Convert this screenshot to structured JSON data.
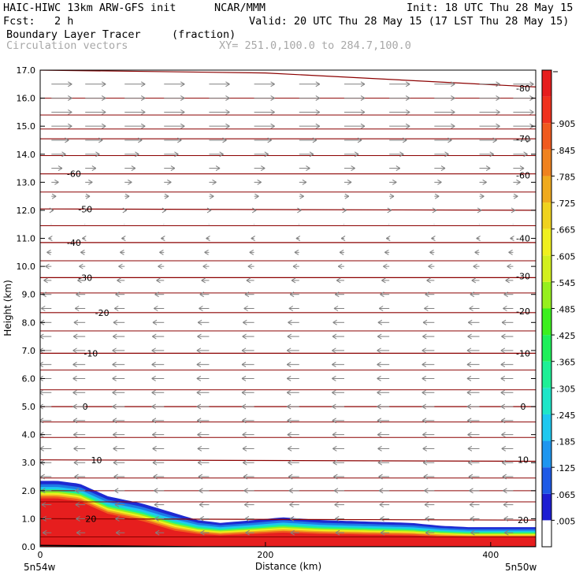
{
  "header": {
    "line1_left": "HAIC-HIWC 13km ARW-GFS init",
    "line1_mid": "NCAR/MMM",
    "line1_right": "Init: 18 UTC Thu 28 May 15",
    "fcst": "Fcst:   2 h",
    "valid": "Valid: 20 UTC Thu 28 May 15 (17 LST Thu 28 May 15)",
    "field": "Boundary Layer Tracer",
    "units": "(fraction)",
    "vectors": "Circulation vectors",
    "xy": "XY= 251.0,100.0 to 284.7,100.0"
  },
  "chart_data": {
    "type": "heatmap",
    "title": "Boundary Layer Tracer",
    "units": "(fraction)",
    "xlabel": "Distance (km)",
    "ylabel": "Height (km)",
    "xlim": [
      0,
      440
    ],
    "ylim": [
      0,
      17
    ],
    "x_ticks": [
      "0",
      "200",
      "400"
    ],
    "x_tick_values": [
      0,
      200,
      400
    ],
    "x_end_labels": {
      "left": "5n54w",
      "right": "5n50w"
    },
    "y_ticks": [
      "0.0",
      "1.0",
      "2.0",
      "3.0",
      "4.0",
      "5.0",
      "6.0",
      "7.0",
      "8.0",
      "9.0",
      "10.0",
      "11.0",
      "12.0",
      "13.0",
      "14.0",
      "15.0",
      "16.0",
      "17.0"
    ],
    "colorbar": {
      "labels": [
        ".005",
        ".065",
        ".125",
        ".185",
        ".245",
        ".305",
        ".365",
        ".425",
        ".485",
        ".545",
        ".605",
        ".665",
        ".725",
        ".785",
        ".845",
        ".905"
      ],
      "colors": [
        "#ffffff",
        "#1e1ed2",
        "#1e5ae6",
        "#1e96f0",
        "#1ec8f0",
        "#1ee6c8",
        "#1ef096",
        "#1ef05a",
        "#3cf01e",
        "#96f01e",
        "#d2f01e",
        "#f0f01e",
        "#f0d21e",
        "#f0aa1e",
        "#f0821e",
        "#f05a1e",
        "#f0321e",
        "#e61e1e"
      ]
    },
    "tracer_top_km": [
      [
        0,
        2.35
      ],
      [
        15,
        2.35
      ],
      [
        35,
        2.25
      ],
      [
        60,
        1.8
      ],
      [
        90,
        1.55
      ],
      [
        115,
        1.25
      ],
      [
        140,
        0.95
      ],
      [
        160,
        0.85
      ],
      [
        190,
        0.95
      ],
      [
        215,
        1.05
      ],
      [
        250,
        0.95
      ],
      [
        290,
        0.9
      ],
      [
        330,
        0.85
      ],
      [
        355,
        0.75
      ],
      [
        380,
        0.7
      ],
      [
        410,
        0.7
      ],
      [
        440,
        0.7
      ]
    ],
    "terrain_km": [
      [
        0,
        0.05
      ],
      [
        80,
        0.02
      ],
      [
        140,
        0.0
      ],
      [
        440,
        0.0
      ]
    ],
    "temperature_contours": [
      {
        "value": -80,
        "label": "-80",
        "points": [
          [
            0,
            17.0
          ],
          [
            200,
            16.9
          ],
          [
            440,
            16.4
          ]
        ]
      },
      {
        "value": -70,
        "label": "-70",
        "points": [
          [
            0,
            14.55
          ],
          [
            440,
            14.55
          ]
        ]
      },
      {
        "value": -60,
        "label": "-60",
        "points": [
          [
            0,
            13.3
          ],
          [
            440,
            13.3
          ]
        ]
      },
      {
        "value": -50,
        "label": "-50",
        "points": [
          [
            0,
            12.05
          ],
          [
            440,
            12.0
          ]
        ]
      },
      {
        "value": -40,
        "label": "-40",
        "points": [
          [
            0,
            10.85
          ],
          [
            440,
            10.85
          ]
        ]
      },
      {
        "value": -30,
        "label": "-30",
        "points": [
          [
            0,
            9.6
          ],
          [
            440,
            9.6
          ]
        ]
      },
      {
        "value": -20,
        "label": "-20",
        "points": [
          [
            0,
            8.35
          ],
          [
            440,
            8.35
          ]
        ]
      },
      {
        "value": -10,
        "label": "-10",
        "points": [
          [
            0,
            6.9
          ],
          [
            440,
            6.9
          ]
        ]
      },
      {
        "value": 0,
        "label": "0",
        "points": [
          [
            0,
            5.0
          ],
          [
            440,
            5.0
          ]
        ]
      },
      {
        "value": 10,
        "label": "10",
        "points": [
          [
            0,
            3.1
          ],
          [
            440,
            3.05
          ]
        ]
      },
      {
        "value": 20,
        "label": "20",
        "points": [
          [
            0,
            1.0
          ],
          [
            440,
            0.95
          ]
        ]
      }
    ],
    "extra_contours_km": [
      16.0,
      15.4,
      14.9,
      13.95,
      12.65,
      11.45,
      10.2,
      9.05,
      7.7,
      6.3,
      5.6,
      4.45,
      3.9,
      2.45,
      2.0,
      1.6,
      0.35
    ],
    "label_positions_x": [
      [
        30,
        -60
      ],
      [
        40,
        -50
      ],
      [
        30,
        -40
      ],
      [
        40,
        -30
      ],
      [
        55,
        -20
      ],
      [
        45,
        -10
      ],
      [
        40,
        0
      ],
      [
        50,
        10
      ],
      [
        45,
        20
      ]
    ],
    "right_label_positions": [
      [
        -80,
        16.35
      ],
      [
        -70,
        14.55
      ],
      [
        -60,
        13.25
      ],
      [
        -40,
        11.0
      ],
      [
        -30,
        9.65
      ],
      [
        -20,
        8.4
      ],
      [
        -10,
        6.9
      ],
      [
        0,
        5.0
      ],
      [
        10,
        3.1
      ],
      [
        20,
        0.95
      ]
    ],
    "vector_columns_km": [
      10,
      40,
      75,
      110,
      150,
      190,
      230,
      270,
      310,
      350,
      390,
      420
    ],
    "vector_levels_km": [
      16.5,
      16.0,
      15.5,
      15.0,
      14.5,
      14.0,
      13.5,
      13.0,
      12.5,
      12.0,
      11.5,
      11.0,
      10.5,
      10.0,
      9.5,
      9.0,
      8.5,
      8.0,
      7.5,
      7.0,
      6.5,
      6.0,
      5.5,
      5.0,
      4.5,
      4.0,
      3.5,
      3.0,
      2.5,
      2.0,
      1.5,
      1.0,
      0.5
    ],
    "wind_u_profile": [
      [
        17.0,
        1.0
      ],
      [
        15.0,
        1.0
      ],
      [
        14.0,
        0.7
      ],
      [
        13.0,
        0.35
      ],
      [
        12.0,
        0.1
      ],
      [
        11.0,
        -0.15
      ],
      [
        10.0,
        -0.3
      ],
      [
        9.0,
        -0.45
      ],
      [
        8.0,
        -0.55
      ],
      [
        7.0,
        -0.6
      ],
      [
        5.0,
        -0.6
      ],
      [
        3.0,
        -0.55
      ],
      [
        2.0,
        -0.5
      ],
      [
        1.0,
        -0.45
      ],
      [
        0.0,
        -0.4
      ]
    ]
  }
}
